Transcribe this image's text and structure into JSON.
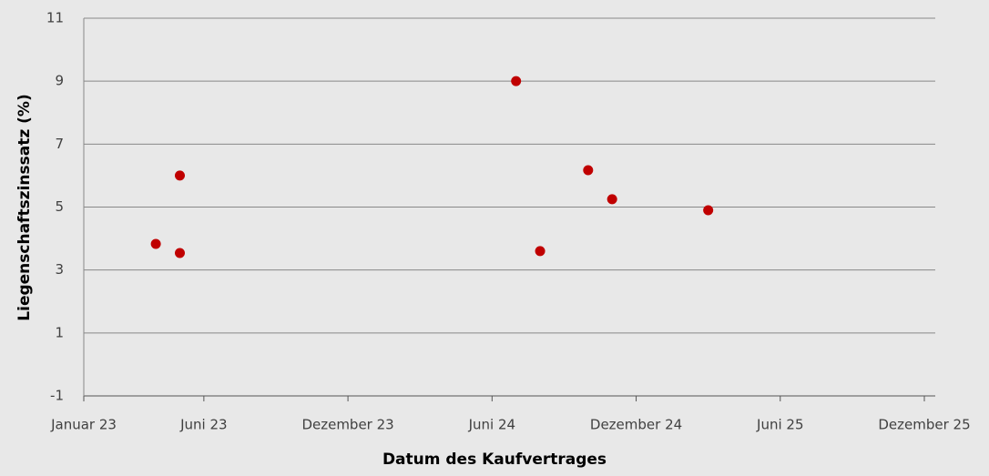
{
  "chart_data": {
    "type": "scatter",
    "x_label": "Datum des Kaufvertrages",
    "y_label": "Liegenschaftszinssatz (%)",
    "series": [
      {
        "name": "Liegenschaftszinssatz",
        "color": "#c00000",
        "x": [
          "2023-04",
          "2023-05",
          "2023-05",
          "2024-07",
          "2024-08",
          "2024-10",
          "2024-11",
          "2025-03"
        ],
        "values": [
          3.83,
          6.0,
          3.54,
          9.0,
          3.6,
          6.17,
          5.25,
          4.9
        ]
      }
    ],
    "xlim": [
      "2023-01",
      "2025-12"
    ],
    "xticks": [
      {
        "value": "2023-01",
        "label": "Januar 23"
      },
      {
        "value": "2023-06",
        "label": "Juni 23"
      },
      {
        "value": "2023-12",
        "label": "Dezember 23"
      },
      {
        "value": "2024-06",
        "label": "Juni 24"
      },
      {
        "value": "2024-12",
        "label": "Dezember 24"
      },
      {
        "value": "2025-06",
        "label": "Juni 25"
      },
      {
        "value": "2025-12",
        "label": "Dezember 25"
      }
    ],
    "ylim": [
      -1,
      11
    ],
    "yticks": [
      -1,
      1,
      3,
      5,
      7,
      9,
      11
    ],
    "grid": true
  }
}
